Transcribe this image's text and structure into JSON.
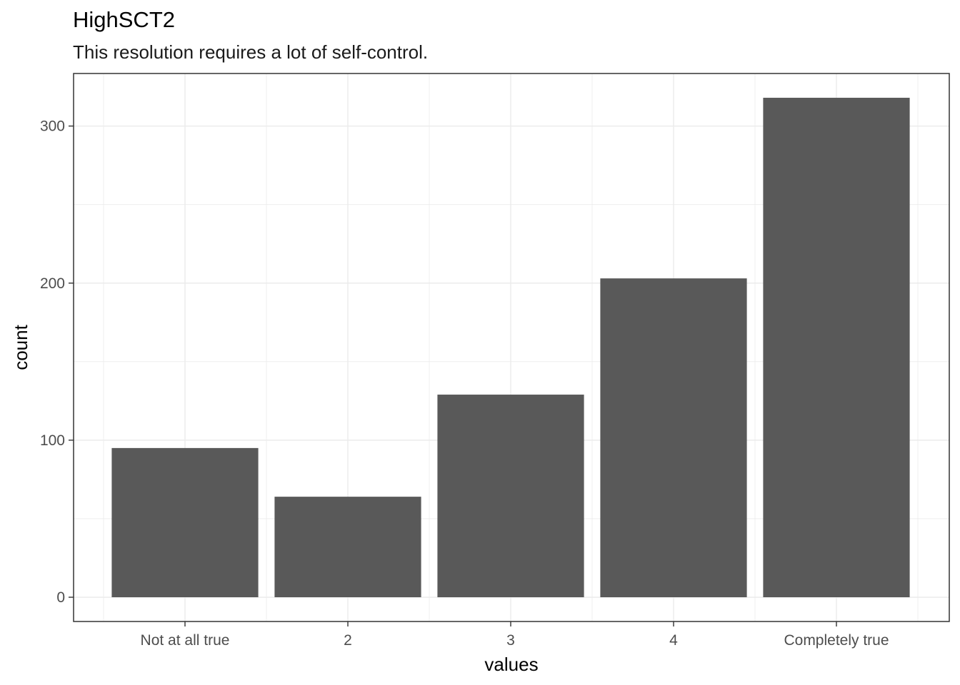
{
  "chart_data": {
    "type": "bar",
    "title": "HighSCT2",
    "subtitle": "This resolution requires a lot of self-control.",
    "xlabel": "values",
    "ylabel": "count",
    "categories": [
      "Not at all true",
      "2",
      "3",
      "4",
      "Completely true"
    ],
    "values": [
      95,
      64,
      129,
      203,
      318
    ],
    "ylim": [
      0,
      333
    ],
    "yticks": [
      0,
      100,
      200,
      300
    ],
    "grid": true,
    "bar_color": "#595959",
    "grid_color": "#ebebeb",
    "panel_border_color": "#333333"
  }
}
